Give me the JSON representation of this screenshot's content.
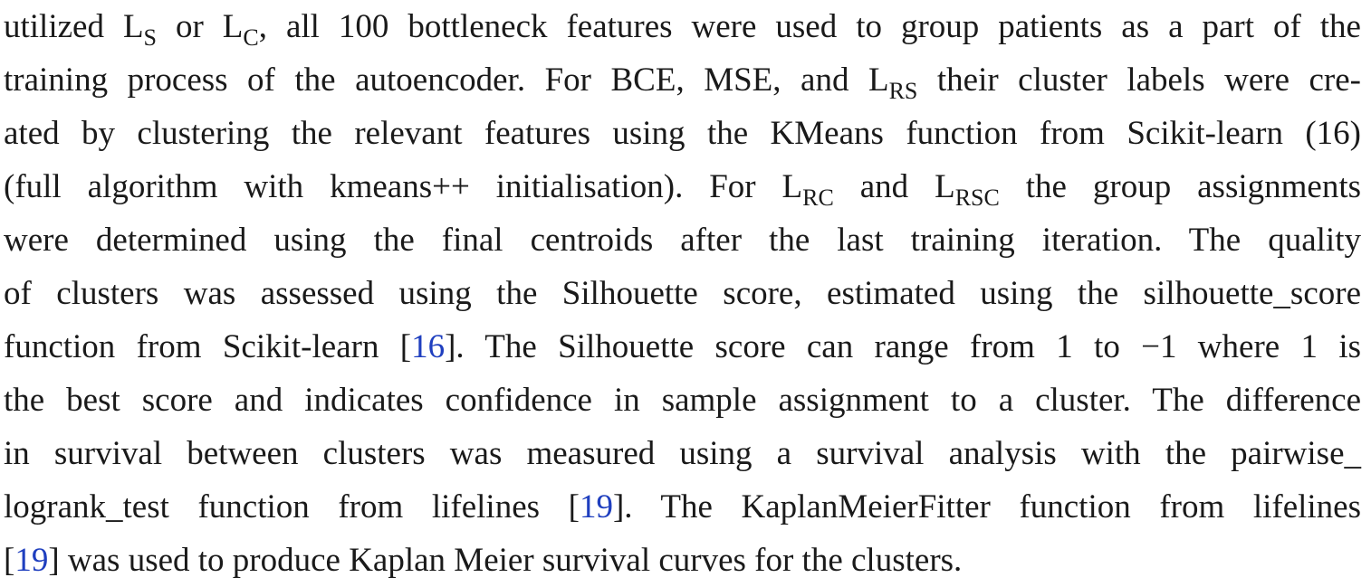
{
  "lines": [
    {
      "segments": [
        {
          "t": "utilized L"
        },
        {
          "sub": "S"
        },
        {
          "t": " or L"
        },
        {
          "sub": "C"
        },
        {
          "t": ", all 100 bottleneck features were used to group patients as a part of the"
        }
      ]
    },
    {
      "segments": [
        {
          "t": "training process of the autoencoder. For BCE, MSE, and L"
        },
        {
          "sub": "RS"
        },
        {
          "t": " their cluster labels were cre-"
        }
      ]
    },
    {
      "segments": [
        {
          "t": "ated by clustering the relevant features using the KMeans function from Scikit-learn (16)"
        }
      ]
    },
    {
      "segments": [
        {
          "t": "(full algorithm with kmeans++ initialisation). For L"
        },
        {
          "sub": "RC"
        },
        {
          "t": " and L"
        },
        {
          "sub": "RSC"
        },
        {
          "t": " the group assignments"
        }
      ]
    },
    {
      "segments": [
        {
          "t": "were determined using the final centroids after the last training iteration. The quality"
        }
      ]
    },
    {
      "segments": [
        {
          "t": "of clusters was assessed using the Silhouette score, estimated using the silhouette_score"
        }
      ]
    },
    {
      "segments": [
        {
          "t": "function from Scikit-learn ["
        },
        {
          "ref": "16"
        },
        {
          "t": "]. The Silhouette score can range from 1 to −1 where 1 is"
        }
      ]
    },
    {
      "segments": [
        {
          "t": "the best score and indicates confidence in sample assignment to a cluster. The difference"
        }
      ]
    },
    {
      "segments": [
        {
          "t": "in survival between clusters was measured using a survival analysis with the pairwise_"
        }
      ]
    },
    {
      "segments": [
        {
          "t": "logrank_test function from lifelines ["
        },
        {
          "ref": "19"
        },
        {
          "t": "]. The KaplanMeierFitter function from lifelines"
        }
      ]
    },
    {
      "segments": [
        {
          "t": "["
        },
        {
          "ref": "19"
        },
        {
          "t": "] was used to produce Kaplan Meier survival curves for the clusters."
        }
      ]
    }
  ]
}
